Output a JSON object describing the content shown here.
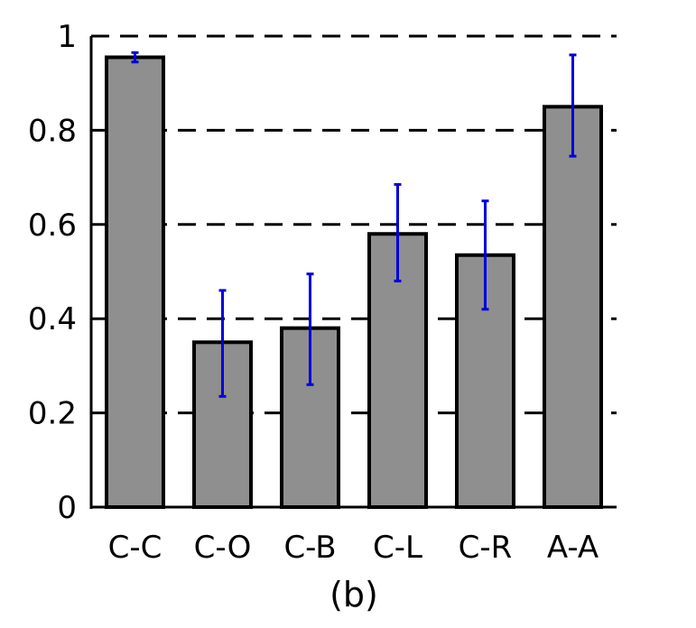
{
  "chart_data": {
    "type": "bar",
    "categories": [
      "C-C",
      "C-O",
      "C-B",
      "C-L",
      "C-R",
      "A-A"
    ],
    "values": [
      0.955,
      0.35,
      0.38,
      0.58,
      0.535,
      0.85
    ],
    "error": [
      [
        0.945,
        0.965
      ],
      [
        0.235,
        0.46
      ],
      [
        0.26,
        0.495
      ],
      [
        0.48,
        0.685
      ],
      [
        0.42,
        0.65
      ],
      [
        0.745,
        0.96
      ]
    ],
    "yticks": [
      "0",
      "0.2",
      "0.4",
      "0.6",
      "0.8",
      "1"
    ],
    "ylim": [
      0,
      1
    ],
    "grid": "horizontal dashed",
    "caption": "(b)",
    "colors": {
      "bar": "#8f8f8f",
      "error": "#0000dd",
      "axis": "#000000"
    }
  }
}
